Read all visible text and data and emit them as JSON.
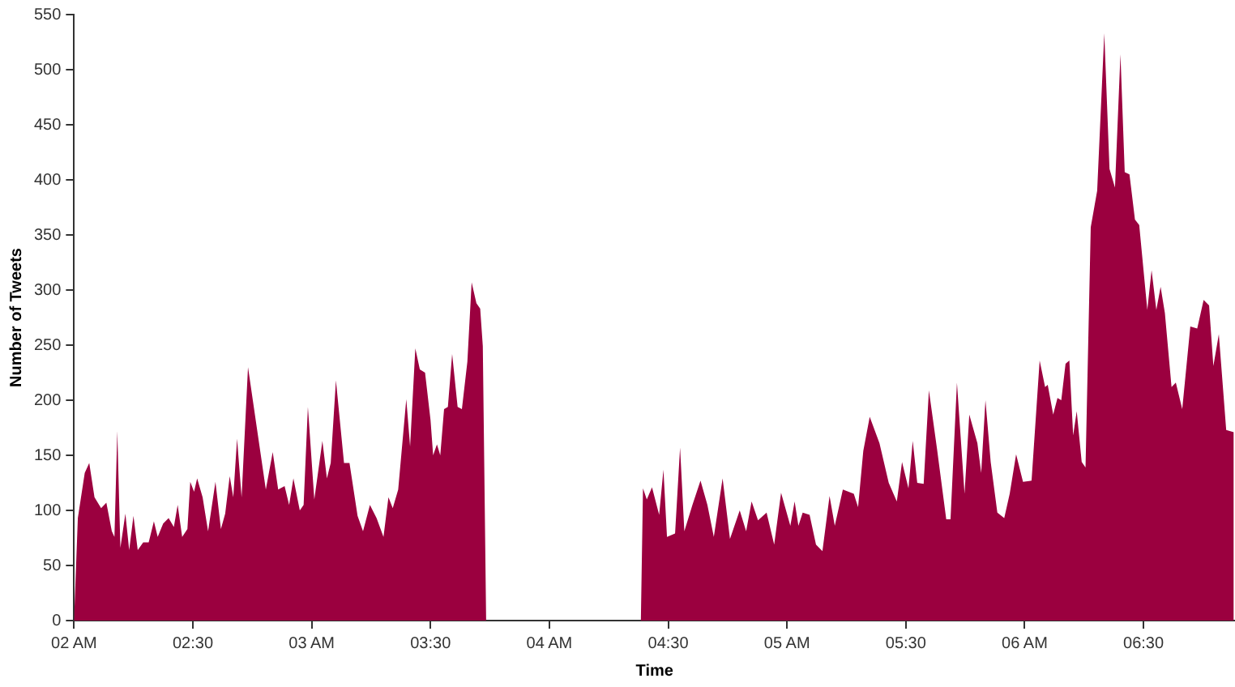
{
  "chart_data": {
    "type": "area",
    "xlabel": "Time",
    "ylabel": "Number of Tweets",
    "xlim": [
      2,
      6.885
    ],
    "ylim": [
      0,
      550
    ],
    "xticks": [
      {
        "value": 2,
        "label": "02 AM"
      },
      {
        "value": 2.5,
        "label": "02:30"
      },
      {
        "value": 3,
        "label": "03 AM"
      },
      {
        "value": 3.5,
        "label": "03:30"
      },
      {
        "value": 4,
        "label": "04 AM"
      },
      {
        "value": 4.5,
        "label": "04:30"
      },
      {
        "value": 5,
        "label": "05 AM"
      },
      {
        "value": 5.5,
        "label": "05:30"
      },
      {
        "value": 6,
        "label": "06 AM"
      },
      {
        "value": 6.5,
        "label": "06:30"
      }
    ],
    "yticks": [
      0,
      50,
      100,
      150,
      200,
      250,
      300,
      350,
      400,
      450,
      500,
      550
    ],
    "grid": false,
    "legend": false,
    "marker": "none",
    "series": [
      {
        "color": "#9b003f",
        "x": [
          2.0,
          2.016,
          2.045,
          2.064,
          2.086,
          2.114,
          2.136,
          2.159,
          2.17,
          2.182,
          2.195,
          2.216,
          2.232,
          2.25,
          2.268,
          2.291,
          2.314,
          2.336,
          2.352,
          2.375,
          2.398,
          2.42,
          2.436,
          2.455,
          2.477,
          2.489,
          2.505,
          2.518,
          2.541,
          2.564,
          2.595,
          2.618,
          2.636,
          2.655,
          2.67,
          2.686,
          2.705,
          2.732,
          2.761,
          2.807,
          2.836,
          2.859,
          2.886,
          2.905,
          2.923,
          2.95,
          2.966,
          2.984,
          3.011,
          3.045,
          3.064,
          3.08,
          3.102,
          3.136,
          3.159,
          3.193,
          3.216,
          3.245,
          3.273,
          3.302,
          3.323,
          3.341,
          3.364,
          3.398,
          3.414,
          3.436,
          3.455,
          3.477,
          3.5,
          3.511,
          3.527,
          3.541,
          3.557,
          3.573,
          3.591,
          3.614,
          3.632,
          3.655,
          3.673,
          3.693,
          3.709,
          3.72,
          3.734,
          4.385,
          4.394,
          4.41,
          4.432,
          4.462,
          4.48,
          4.495,
          4.529,
          4.55,
          4.568,
          4.602,
          4.636,
          4.665,
          4.692,
          4.729,
          4.76,
          4.801,
          4.828,
          4.851,
          4.878,
          4.914,
          4.946,
          4.975,
          5.014,
          5.032,
          5.048,
          5.066,
          5.095,
          5.122,
          5.149,
          5.179,
          5.201,
          5.235,
          5.281,
          5.299,
          5.321,
          5.348,
          5.389,
          5.428,
          5.462,
          5.484,
          5.511,
          5.529,
          5.548,
          5.575,
          5.597,
          5.631,
          5.67,
          5.688,
          5.715,
          5.747,
          5.767,
          5.801,
          5.817,
          5.835,
          5.857,
          5.885,
          5.914,
          5.937,
          5.964,
          5.993,
          6.029,
          6.063,
          6.086,
          6.097,
          6.12,
          6.138,
          6.154,
          6.172,
          6.188,
          6.204,
          6.219,
          6.24,
          6.256,
          6.278,
          6.305,
          6.335,
          6.357,
          6.38,
          6.403,
          6.421,
          6.441,
          6.464,
          6.482,
          6.516,
          6.534,
          6.554,
          6.572,
          6.59,
          6.618,
          6.636,
          6.663,
          6.697,
          6.726,
          6.753,
          6.776,
          6.794,
          6.817,
          6.848,
          6.88
        ],
        "values": [
          0,
          93,
          134,
          143,
          112,
          102,
          107,
          81,
          76,
          172,
          66,
          97,
          64,
          95,
          64,
          71,
          71,
          90,
          76,
          88,
          93,
          85,
          105,
          76,
          83,
          126,
          117,
          129,
          112,
          81,
          126,
          83,
          97,
          131,
          112,
          165,
          112,
          230,
          187,
          119,
          153,
          119,
          122,
          105,
          129,
          100,
          105,
          194,
          110,
          163,
          129,
          143,
          218,
          143,
          143,
          95,
          81,
          105,
          93,
          76,
          112,
          102,
          119,
          201,
          158,
          247,
          228,
          225,
          182,
          150,
          160,
          150,
          192,
          194,
          242,
          194,
          192,
          235,
          307,
          288,
          283,
          249,
          0,
          0,
          120,
          110,
          121,
          96,
          137,
          76,
          79,
          157,
          81,
          105,
          127,
          105,
          76,
          129,
          74,
          100,
          81,
          108,
          91,
          98,
          69,
          116,
          86,
          108,
          86,
          98,
          96,
          69,
          63,
          113,
          86,
          119,
          115,
          103,
          154,
          185,
          161,
          125,
          108,
          144,
          120,
          163,
          125,
          124,
          209,
          156,
          92,
          92,
          216,
          115,
          187,
          161,
          134,
          200,
          144,
          98,
          93,
          115,
          151,
          126,
          127,
          236,
          212,
          214,
          187,
          202,
          200,
          233,
          236,
          168,
          190,
          144,
          139,
          357,
          390,
          533,
          410,
          393,
          514,
          407,
          405,
          364,
          359,
          282,
          318,
          282,
          303,
          279,
          212,
          216,
          192,
          267,
          265,
          291,
          286,
          231,
          260,
          173,
          171
        ]
      }
    ]
  }
}
